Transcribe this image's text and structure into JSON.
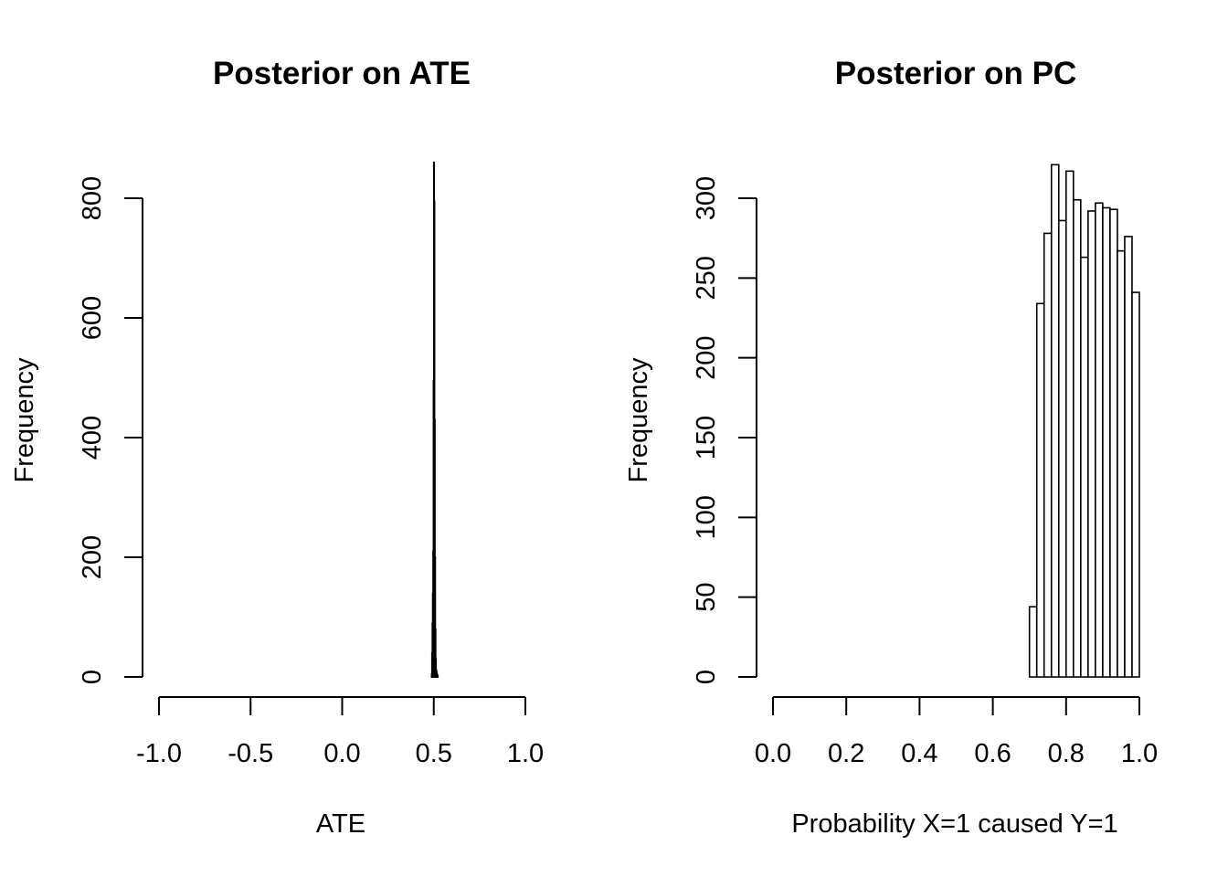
{
  "chart_data": [
    {
      "type": "bar",
      "title": "Posterior on ATE",
      "xlabel": "ATE",
      "ylabel": "Frequency",
      "xlim": [
        -1.0,
        1.0
      ],
      "ylim": [
        0,
        860
      ],
      "x_ticks": [
        "-1.0",
        "-0.5",
        "0.0",
        "0.5",
        "1.0"
      ],
      "y_ticks": [
        "0",
        "200",
        "400",
        "600",
        "800"
      ],
      "bin_width": 0.002,
      "bins": [
        {
          "x0": 0.488,
          "x1": 0.49,
          "count": 5
        },
        {
          "x0": 0.49,
          "x1": 0.492,
          "count": 40
        },
        {
          "x0": 0.492,
          "x1": 0.494,
          "count": 90
        },
        {
          "x0": 0.494,
          "x1": 0.496,
          "count": 140
        },
        {
          "x0": 0.496,
          "x1": 0.498,
          "count": 210
        },
        {
          "x0": 0.498,
          "x1": 0.5,
          "count": 495
        },
        {
          "x0": 0.5,
          "x1": 0.502,
          "count": 860
        },
        {
          "x0": 0.502,
          "x1": 0.504,
          "count": 795
        },
        {
          "x0": 0.504,
          "x1": 0.506,
          "count": 430
        },
        {
          "x0": 0.506,
          "x1": 0.508,
          "count": 200
        },
        {
          "x0": 0.508,
          "x1": 0.51,
          "count": 80
        },
        {
          "x0": 0.51,
          "x1": 0.512,
          "count": 30
        },
        {
          "x0": 0.512,
          "x1": 0.514,
          "count": 12
        },
        {
          "x0": 0.514,
          "x1": 0.516,
          "count": 8
        },
        {
          "x0": 0.516,
          "x1": 0.518,
          "count": 5
        },
        {
          "x0": 0.518,
          "x1": 0.52,
          "count": 3
        },
        {
          "x0": 0.52,
          "x1": 0.522,
          "count": 2
        }
      ]
    },
    {
      "type": "bar",
      "title": "Posterior on PC",
      "xlabel": "Probability X=1 caused Y=1",
      "ylabel": "Frequency",
      "xlim": [
        0.0,
        1.0
      ],
      "ylim": [
        0,
        320
      ],
      "x_ticks": [
        "0.0",
        "0.2",
        "0.4",
        "0.6",
        "0.8",
        "1.0"
      ],
      "y_ticks": [
        "0",
        "50",
        "100",
        "150",
        "200",
        "250",
        "300"
      ],
      "bin_width": 0.02,
      "bins": [
        {
          "x0": 0.7,
          "x1": 0.72,
          "count": 44
        },
        {
          "x0": 0.72,
          "x1": 0.74,
          "count": 234
        },
        {
          "x0": 0.74,
          "x1": 0.76,
          "count": 278
        },
        {
          "x0": 0.76,
          "x1": 0.78,
          "count": 321
        },
        {
          "x0": 0.78,
          "x1": 0.8,
          "count": 286
        },
        {
          "x0": 0.8,
          "x1": 0.82,
          "count": 317
        },
        {
          "x0": 0.82,
          "x1": 0.84,
          "count": 299
        },
        {
          "x0": 0.84,
          "x1": 0.86,
          "count": 263
        },
        {
          "x0": 0.86,
          "x1": 0.88,
          "count": 292
        },
        {
          "x0": 0.88,
          "x1": 0.9,
          "count": 297
        },
        {
          "x0": 0.9,
          "x1": 0.92,
          "count": 294
        },
        {
          "x0": 0.92,
          "x1": 0.94,
          "count": 293
        },
        {
          "x0": 0.94,
          "x1": 0.96,
          "count": 267
        },
        {
          "x0": 0.96,
          "x1": 0.98,
          "count": 276
        },
        {
          "x0": 0.98,
          "x1": 1.0,
          "count": 241
        }
      ]
    }
  ]
}
